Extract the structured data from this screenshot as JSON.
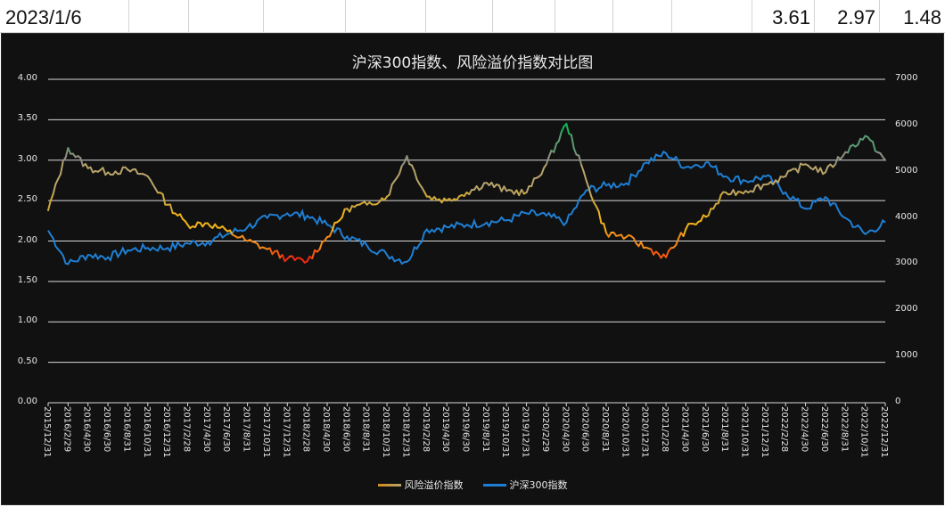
{
  "sheet": {
    "date_cell": "2023/1/6",
    "values": [
      "3.61",
      "2.97",
      "1.48"
    ],
    "column_edges": [
      0,
      145,
      212,
      296,
      388,
      478,
      553,
      623,
      688,
      754,
      838,
      914,
      985,
      1060
    ]
  },
  "chart": {
    "title": "沪深300指数、风险溢价指数对比图",
    "background": "#111111",
    "gridline_color": "#d9d9d9",
    "left_axis_ticks": [
      "4.00",
      "3.50",
      "3.00",
      "2.50",
      "2.00",
      "1.50",
      "1.00",
      "0.50",
      "0.00"
    ],
    "right_axis_ticks": [
      "7000",
      "6000",
      "5000",
      "4000",
      "3000",
      "2000",
      "1000",
      "0"
    ],
    "x_ticks": [
      "2015/12/31",
      "2016/2/29",
      "2016/4/30",
      "2016/6/30",
      "2016/8/31",
      "2016/10/31",
      "2016/12/31",
      "2017/2/28",
      "2017/4/30",
      "2017/6/30",
      "2017/8/31",
      "2017/10/31",
      "2017/12/31",
      "2018/2/28",
      "2018/4/30",
      "2018/6/30",
      "2018/8/31",
      "2018/10/31",
      "2018/12/31",
      "2019/2/28",
      "2019/4/30",
      "2019/6/30",
      "2019/8/31",
      "2019/10/31",
      "2019/12/31",
      "2020/2/29",
      "2020/4/30",
      "2020/6/30",
      "2020/8/31",
      "2020/10/31",
      "2020/12/31",
      "2021/2/28",
      "2021/4/30",
      "2021/6/30",
      "2021/8/31",
      "2021/10/31",
      "2021/12/31",
      "2022/2/28",
      "2022/4/30",
      "2022/6/30",
      "2022/8/31",
      "2022/10/31",
      "2022/12/31"
    ],
    "legend": [
      {
        "label": "风险溢价指数",
        "color": "#c9a227"
      },
      {
        "label": "沪深300指数",
        "color": "#1f7fd4"
      }
    ]
  },
  "chart_data": {
    "type": "line",
    "title": "沪深300指数、风险溢价指数对比图",
    "xlabel": "",
    "ylabel": "",
    "ylim": [
      0,
      4.0
    ],
    "y2lim": [
      0,
      7000
    ],
    "grid": true,
    "legend_position": "bottom",
    "x": [
      "2015/12/31",
      "2016/2/29",
      "2016/4/30",
      "2016/6/30",
      "2016/8/31",
      "2016/10/31",
      "2016/12/31",
      "2017/2/28",
      "2017/4/30",
      "2017/6/30",
      "2017/8/31",
      "2017/10/31",
      "2017/12/31",
      "2018/2/28",
      "2018/4/30",
      "2018/6/30",
      "2018/8/31",
      "2018/10/31",
      "2018/12/31",
      "2019/2/28",
      "2019/4/30",
      "2019/6/30",
      "2019/8/31",
      "2019/10/31",
      "2019/12/31",
      "2020/2/29",
      "2020/4/30",
      "2020/6/30",
      "2020/8/31",
      "2020/10/31",
      "2020/12/31",
      "2021/2/28",
      "2021/4/30",
      "2021/6/30",
      "2021/8/31",
      "2021/10/31",
      "2021/12/31",
      "2022/2/28",
      "2022/4/30",
      "2022/6/30",
      "2022/8/31",
      "2022/10/31",
      "2022/12/31"
    ],
    "series": [
      {
        "name": "风险溢价指数",
        "axis": "left",
        "values": [
          2.38,
          3.15,
          2.9,
          2.85,
          2.88,
          2.8,
          2.45,
          2.2,
          2.22,
          2.12,
          2.0,
          1.9,
          1.78,
          1.75,
          2.05,
          2.4,
          2.45,
          2.55,
          3.05,
          2.55,
          2.5,
          2.6,
          2.72,
          2.62,
          2.6,
          2.95,
          3.45,
          2.75,
          2.1,
          2.05,
          1.92,
          1.8,
          2.15,
          2.3,
          2.6,
          2.62,
          2.7,
          2.8,
          2.95,
          2.85,
          3.1,
          3.3,
          3.0
        ]
      },
      {
        "name": "沪深300指数",
        "axis": "right",
        "values": [
          3730,
          3000,
          3200,
          3150,
          3300,
          3350,
          3350,
          3450,
          3480,
          3650,
          3800,
          4000,
          4100,
          4050,
          3850,
          3600,
          3400,
          3200,
          3050,
          3750,
          3800,
          3850,
          3900,
          3950,
          4100,
          4050,
          3900,
          4600,
          4700,
          4750,
          5200,
          5400,
          5100,
          5200,
          4900,
          4800,
          4900,
          4550,
          4200,
          4450,
          4000,
          3650,
          3900
        ]
      }
    ]
  }
}
